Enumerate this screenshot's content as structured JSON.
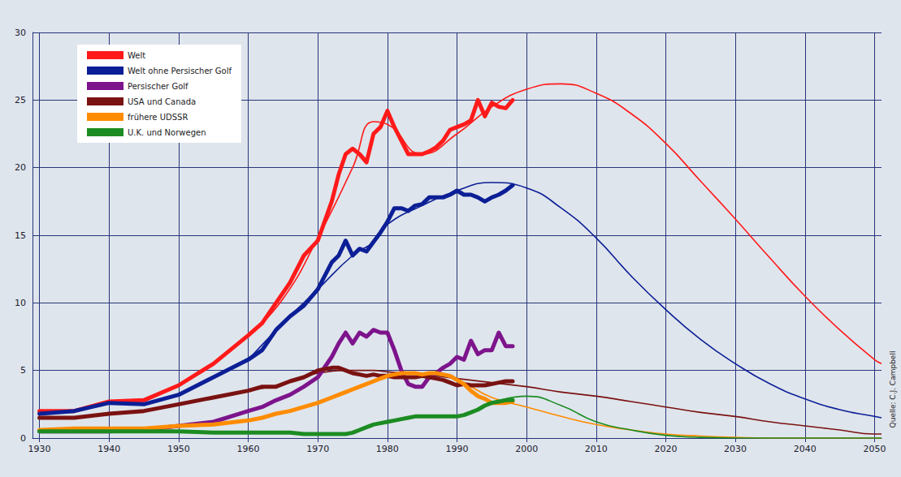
{
  "chart_data": {
    "type": "line",
    "source": "Quelle: C.J. Campbell",
    "xlim": [
      1929,
      2051
    ],
    "xticks": [
      1930,
      1940,
      1950,
      1960,
      1970,
      1980,
      1990,
      2000,
      2010,
      2020,
      2030,
      2040,
      2050
    ],
    "ylim": [
      0,
      30
    ],
    "yticks": [
      0,
      5,
      10,
      15,
      20,
      25,
      30
    ],
    "grid": true,
    "legend": "upper left",
    "x": [
      1930,
      1935,
      1940,
      1945,
      1950,
      1955,
      1960,
      1962,
      1964,
      1966,
      1968,
      1970,
      1972,
      1973,
      1974,
      1975,
      1976,
      1977,
      1978,
      1979,
      1980,
      1981,
      1982,
      1983,
      1984,
      1985,
      1986,
      1987,
      1988,
      1989,
      1990,
      1991,
      1992,
      1993,
      1994,
      1995,
      1996,
      1997,
      1998
    ],
    "forecast_x": [
      1960,
      1965,
      1970,
      1975,
      1978,
      1980,
      1985,
      1990,
      1995,
      2000,
      2005,
      2010,
      2015,
      2020,
      2025,
      2030,
      2035,
      2040,
      2045,
      2050,
      2051
    ],
    "series": [
      {
        "name": "Welt",
        "color": "#ff1a1a",
        "values": [
          2.0,
          2.0,
          2.7,
          2.8,
          3.9,
          5.5,
          7.6,
          8.5,
          10.0,
          11.5,
          13.5,
          14.6,
          17.5,
          19.5,
          21.0,
          21.4,
          21.0,
          20.4,
          22.5,
          23.0,
          24.2,
          23.0,
          22.0,
          21.0,
          21.0,
          21.0,
          21.2,
          21.5,
          22.0,
          22.8,
          23.0,
          23.2,
          23.5,
          25.0,
          23.8,
          24.8,
          24.5,
          24.4,
          25.0
        ],
        "forecast": [
          7.5,
          10.3,
          14.8,
          20.0,
          23.4,
          23.2,
          21.0,
          22.5,
          24.5,
          25.8,
          26.2,
          25.5,
          24.0,
          21.8,
          19.0,
          16.2,
          13.3,
          10.5,
          8.0,
          5.8,
          5.5
        ]
      },
      {
        "name": "Welt ohne Persischer Golf",
        "color": "#0c1f96",
        "values": [
          1.8,
          2.0,
          2.6,
          2.5,
          3.2,
          4.5,
          5.8,
          6.5,
          8.0,
          9.0,
          9.8,
          11.0,
          13.0,
          13.5,
          14.6,
          13.5,
          14.0,
          13.8,
          14.5,
          15.2,
          16.0,
          17.0,
          17.0,
          16.8,
          17.2,
          17.3,
          17.8,
          17.8,
          17.8,
          18.0,
          18.3,
          18.0,
          18.0,
          17.8,
          17.5,
          17.8,
          18.0,
          18.3,
          18.7
        ],
        "forecast": [
          5.8,
          8.5,
          11.0,
          13.5,
          14.5,
          15.8,
          17.2,
          18.3,
          18.9,
          18.5,
          17.0,
          14.8,
          12.0,
          9.5,
          7.3,
          5.5,
          4.0,
          2.9,
          2.1,
          1.6,
          1.5
        ]
      },
      {
        "name": "Persischer Golf",
        "color": "#7d148c",
        "values": [
          0.5,
          0.5,
          0.5,
          0.6,
          0.9,
          1.2,
          2.0,
          2.3,
          2.8,
          3.2,
          3.8,
          4.5,
          6.0,
          7.0,
          7.8,
          7.0,
          7.8,
          7.5,
          8.0,
          7.8,
          7.8,
          6.5,
          5.0,
          4.0,
          3.8,
          3.8,
          4.5,
          4.8,
          5.2,
          5.5,
          6.0,
          5.8,
          7.2,
          6.2,
          6.5,
          6.5,
          7.8,
          6.8,
          6.8
        ]
      },
      {
        "name": "USA und Canada",
        "color": "#7a1212",
        "values": [
          1.5,
          1.5,
          1.8,
          2.0,
          2.5,
          3.0,
          3.5,
          3.8,
          3.8,
          4.2,
          4.5,
          5.0,
          5.2,
          5.2,
          5.0,
          4.8,
          4.7,
          4.6,
          4.7,
          4.6,
          4.6,
          4.5,
          4.5,
          4.5,
          4.5,
          4.6,
          4.5,
          4.4,
          4.3,
          4.1,
          3.9,
          4.0,
          3.9,
          3.9,
          3.9,
          4.0,
          4.1,
          4.2,
          4.2
        ],
        "forecast": [
          3.5,
          4.0,
          4.8,
          5.0,
          5.0,
          4.9,
          4.7,
          4.4,
          4.1,
          3.8,
          3.4,
          3.1,
          2.7,
          2.3,
          1.9,
          1.6,
          1.2,
          0.9,
          0.6,
          0.3,
          0.3
        ]
      },
      {
        "name": "frühere UDSSR",
        "color": "#ff8c00",
        "values": [
          0.6,
          0.7,
          0.7,
          0.7,
          0.9,
          1.0,
          1.3,
          1.5,
          1.8,
          2.0,
          2.3,
          2.6,
          3.0,
          3.2,
          3.4,
          3.6,
          3.8,
          4.0,
          4.2,
          4.4,
          4.6,
          4.7,
          4.8,
          4.8,
          4.8,
          4.7,
          4.8,
          4.8,
          4.7,
          4.6,
          4.3,
          4.0,
          3.5,
          3.1,
          2.9,
          2.6,
          2.6,
          2.6,
          2.7
        ],
        "forecast": [
          1.3,
          1.9,
          2.6,
          3.6,
          4.2,
          4.6,
          4.8,
          4.3,
          3.0,
          2.3,
          1.6,
          1.0,
          0.6,
          0.3,
          0.15,
          0.05,
          0,
          0,
          0,
          0,
          0
        ]
      },
      {
        "name": "U.K. und Norwegen",
        "color": "#1c8c22",
        "values": [
          0.5,
          0.5,
          0.5,
          0.5,
          0.5,
          0.4,
          0.4,
          0.4,
          0.4,
          0.4,
          0.3,
          0.3,
          0.3,
          0.3,
          0.3,
          0.4,
          0.6,
          0.8,
          1.0,
          1.1,
          1.2,
          1.3,
          1.4,
          1.5,
          1.6,
          1.6,
          1.6,
          1.6,
          1.6,
          1.6,
          1.6,
          1.7,
          1.9,
          2.1,
          2.4,
          2.6,
          2.7,
          2.8,
          2.8
        ],
        "forecast": [
          null,
          null,
          null,
          null,
          null,
          null,
          null,
          null,
          2.6,
          3.1,
          2.4,
          1.2,
          0.6,
          0.2,
          0.05,
          0,
          0,
          0,
          0,
          0,
          0
        ]
      }
    ]
  }
}
